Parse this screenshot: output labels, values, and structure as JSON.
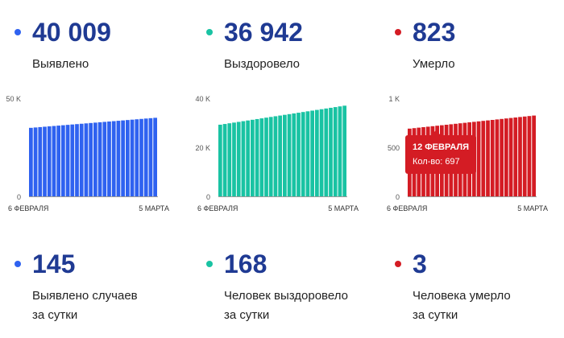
{
  "totals": [
    {
      "value": "40 009",
      "label": "Выявлено",
      "color": "#2f62f0"
    },
    {
      "value": "36 942",
      "label": "Выздоровело",
      "color": "#19c3a3"
    },
    {
      "value": "823",
      "label": "Умерло",
      "color": "#d41c24"
    }
  ],
  "daily": [
    {
      "value": "145",
      "label_line1": "Выявлено случаев",
      "label_line2": "за сутки",
      "color": "#2f62f0"
    },
    {
      "value": "168",
      "label_line1": "Человек выздоровело",
      "label_line2": "за сутки",
      "color": "#19c3a3"
    },
    {
      "value": "3",
      "label_line1": "Человека умерло",
      "label_line2": "за сутки",
      "color": "#d41c24"
    }
  ],
  "tooltip": {
    "date": "12 ФЕВРАЛЯ",
    "text": "Кол-во: 697"
  },
  "chart_data": [
    {
      "type": "bar",
      "color": "#2f62f0",
      "xlabel_start": "6 ФЕВРАЛЯ",
      "xlabel_end": "5 МАРТА",
      "yticks": [
        {
          "value": 0,
          "label": "0"
        },
        {
          "value": 50000,
          "label": "50 K"
        }
      ],
      "ylim": [
        0,
        50000
      ],
      "start_value": 34900,
      "end_value": 40009,
      "bar_count": 28
    },
    {
      "type": "bar",
      "color": "#19c3a3",
      "xlabel_start": "6 ФЕВРАЛЯ",
      "xlabel_end": "5 МАРТА",
      "yticks": [
        {
          "value": 0,
          "label": "0"
        },
        {
          "value": 20000,
          "label": "20 K"
        },
        {
          "value": 40000,
          "label": "40 K"
        }
      ],
      "ylim": [
        0,
        40000
      ],
      "start_value": 29200,
      "end_value": 36942,
      "bar_count": 28
    },
    {
      "type": "bar",
      "color": "#d41c24",
      "xlabel_start": "6 ФЕВРАЛЯ",
      "xlabel_end": "5 МАРТА",
      "yticks": [
        {
          "value": 0,
          "label": "0"
        },
        {
          "value": 500,
          "label": "500"
        },
        {
          "value": 1000,
          "label": "1 K"
        }
      ],
      "ylim": [
        0,
        1000
      ],
      "start_value": 690,
      "end_value": 823,
      "bar_count": 28
    }
  ]
}
